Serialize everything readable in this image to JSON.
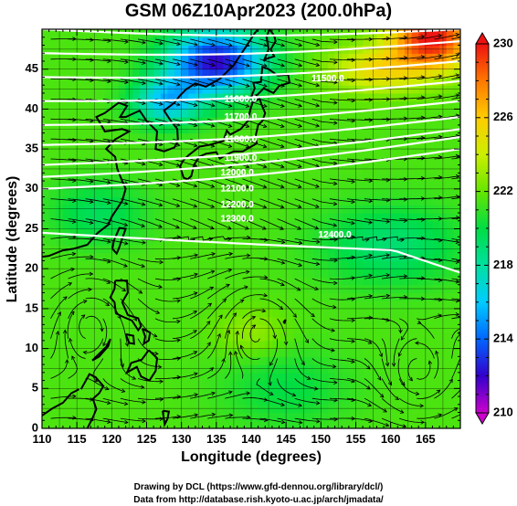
{
  "title": "GSM 06Z10Apr2023 (200.0hPa)",
  "credits": {
    "line1": "Drawing by DCL (https://www.gfd-dennou.org/library/dcl/)",
    "line2": "Data from http://database.rish.kyoto-u.ac.jp/arch/jmadata/"
  },
  "chart_data": {
    "type": "heatmap",
    "title": "GSM 06Z10Apr2023 (200.0hPa)",
    "xlabel": "Longitude (degrees)",
    "ylabel": "Latitude  (degrees)",
    "xlim": [
      110,
      170
    ],
    "ylim": [
      0,
      50
    ],
    "x_ticks": [
      110,
      115,
      120,
      125,
      130,
      135,
      140,
      145,
      150,
      155,
      160,
      165
    ],
    "y_ticks": [
      0,
      5,
      10,
      15,
      20,
      25,
      30,
      35,
      40,
      45
    ],
    "grid": true,
    "colorbar": {
      "min": 210,
      "max": 230,
      "ticks": [
        210,
        214,
        218,
        222,
        226,
        230
      ],
      "colors": [
        "#cc00cc",
        "#3300cc",
        "#0066ff",
        "#00ccff",
        "#00e0a0",
        "#00dd44",
        "#66e600",
        "#ccee00",
        "#ffcc00",
        "#ff7700",
        "#ee1111"
      ]
    },
    "temperature_field": {
      "background": 221.5,
      "features": [
        {
          "kind": "cold",
          "lon": 135,
          "lat": 46,
          "value": 212,
          "sx": 7,
          "sy": 4
        },
        {
          "kind": "cold",
          "lon": 128,
          "lat": 41,
          "value": 216,
          "sx": 5,
          "sy": 3
        },
        {
          "kind": "warm",
          "lon": 166,
          "lat": 49,
          "value": 230,
          "sx": 6,
          "sy": 4
        },
        {
          "kind": "warm",
          "lon": 158,
          "lat": 45,
          "value": 225,
          "sx": 7,
          "sy": 3
        },
        {
          "kind": "cool",
          "lon": 118,
          "lat": 27,
          "value": 219.5,
          "sx": 7,
          "sy": 4
        },
        {
          "kind": "cool",
          "lon": 160,
          "lat": 23,
          "value": 219,
          "sx": 10,
          "sy": 5
        },
        {
          "kind": "cool",
          "lon": 145,
          "lat": 5,
          "value": 220,
          "sx": 9,
          "sy": 5
        },
        {
          "kind": "warm",
          "lon": 140,
          "lat": 12,
          "value": 223,
          "sx": 5,
          "sy": 3
        }
      ]
    },
    "contour_labels": [
      {
        "text": "11500.0",
        "lon": 151,
        "lat": 43.8
      },
      {
        "text": "11600.0",
        "lon": 138.5,
        "lat": 41.2
      },
      {
        "text": "11700.0",
        "lon": 138.5,
        "lat": 39.0
      },
      {
        "text": "11800.0",
        "lon": 138.5,
        "lat": 36.2
      },
      {
        "text": "11900.0",
        "lon": 138.5,
        "lat": 33.8
      },
      {
        "text": "12000.0",
        "lon": 138.0,
        "lat": 32.0
      },
      {
        "text": "12100.0",
        "lon": 138.0,
        "lat": 30.0
      },
      {
        "text": "12200.0",
        "lon": 138.0,
        "lat": 28.0
      },
      {
        "text": "12300.0",
        "lon": 138.0,
        "lat": 26.2
      },
      {
        "text": "12400.0",
        "lon": 152.0,
        "lat": 24.2
      }
    ],
    "contours_lat_at_110": [
      50,
      47,
      44,
      41,
      38,
      35.5,
      33,
      31.5,
      30,
      24.5
    ],
    "contours_lat_at_170": [
      50,
      48.5,
      46,
      43.5,
      41,
      39,
      37.5,
      36.5,
      35,
      22.0
    ],
    "wind": {
      "jet_band_lat": [
        24,
        48
      ],
      "jet_direction": "eastward",
      "tropical_vortices": [
        {
          "lon": 141,
          "lat": 13,
          "sense": "clockwise"
        },
        {
          "lon": 117,
          "lat": 14,
          "sense": "clockwise"
        },
        {
          "lon": 164,
          "lat": 6,
          "sense": "counterclockwise"
        }
      ]
    }
  }
}
